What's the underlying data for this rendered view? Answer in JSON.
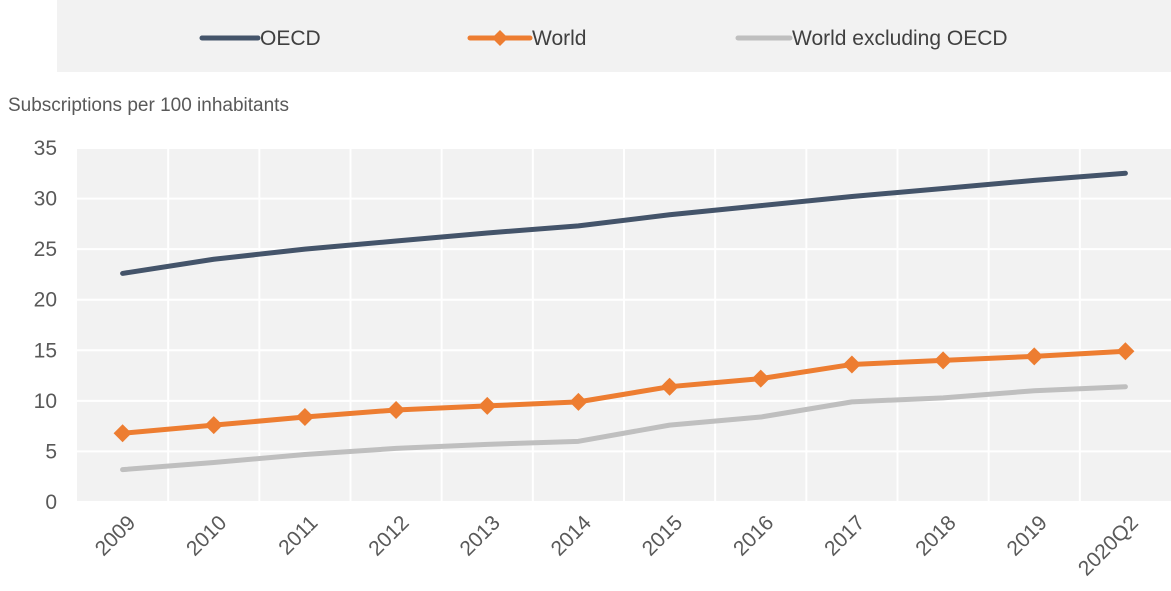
{
  "chart_data": {
    "type": "line",
    "title": "",
    "ylabel": "Subscriptions per 100 inhabitants",
    "xlabel": "",
    "categories": [
      "2009",
      "2010",
      "2011",
      "2012",
      "2013",
      "2014",
      "2015",
      "2016",
      "2017",
      "2018",
      "2019",
      "2020Q2"
    ],
    "ylim": [
      0,
      35
    ],
    "yticks": [
      "0",
      "5",
      "10",
      "15",
      "20",
      "25",
      "30",
      "35"
    ],
    "grid": true,
    "legend_position": "top",
    "series": [
      {
        "name": "OECD",
        "color": "#44546A",
        "marker": "none",
        "values": [
          22.6,
          24.0,
          25.0,
          25.8,
          26.6,
          27.3,
          28.4,
          29.3,
          30.2,
          31.0,
          31.8,
          32.5
        ]
      },
      {
        "name": "World",
        "color": "#ED7D31",
        "marker": "diamond",
        "values": [
          6.8,
          7.6,
          8.4,
          9.1,
          9.5,
          9.9,
          11.4,
          12.2,
          13.6,
          14.0,
          14.4,
          14.9
        ]
      },
      {
        "name": "World excluding OECD",
        "color": "#BFBFBF",
        "marker": "none",
        "values": [
          3.2,
          3.9,
          4.7,
          5.3,
          5.7,
          6.0,
          7.6,
          8.4,
          9.9,
          10.3,
          11.0,
          11.4
        ]
      }
    ]
  }
}
